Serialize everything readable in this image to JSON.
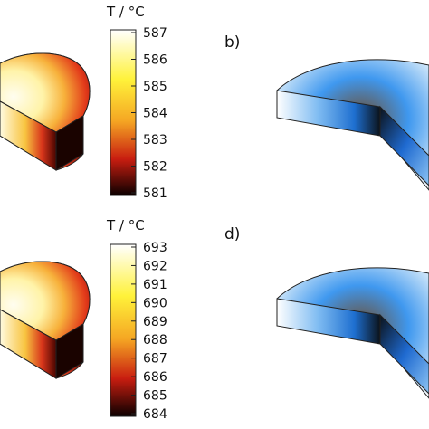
{
  "panels": [
    {
      "colorbar": {
        "title": "T / °C",
        "ticks": [
          "587",
          "586",
          "585",
          "584",
          "583",
          "582",
          "581"
        ],
        "colormap": "hot"
      }
    },
    {
      "label": "b)",
      "colormap": "blue"
    },
    {
      "colorbar": {
        "title": "T / °C",
        "ticks": [
          "693",
          "692",
          "691",
          "690",
          "689",
          "688",
          "687",
          "686",
          "685",
          "684"
        ],
        "colormap": "hot"
      }
    },
    {
      "label": "d)",
      "colormap": "blue"
    }
  ],
  "colors": {
    "hot_white": "#ffffff",
    "hot_yellow": "#fff23a",
    "hot_orange": "#f5a623",
    "hot_red": "#c81d10",
    "hot_black": "#0b0000",
    "blue_light": "#d8ebfb",
    "blue_mid": "#2f8ff0",
    "blue_dark": "#101820"
  }
}
